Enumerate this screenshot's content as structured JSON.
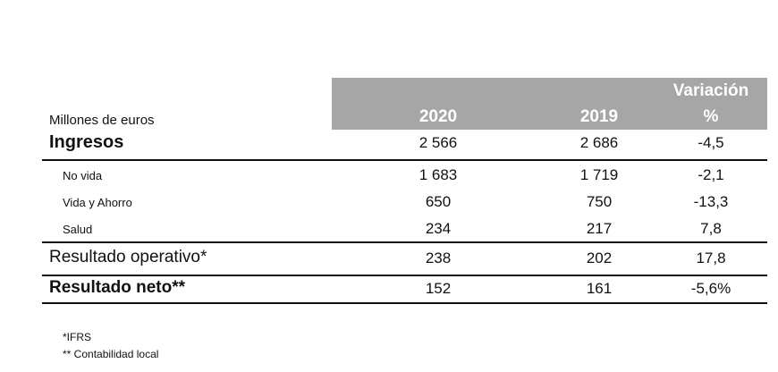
{
  "table": {
    "unit_label": "Millones de euros",
    "columns": [
      "2020",
      "2019"
    ],
    "variation_header": [
      "Variación",
      "%"
    ],
    "rows": [
      [
        "Ingresos",
        "2 566",
        "2 686",
        "-4,5"
      ],
      [
        "No vida",
        "1 683",
        "1 719",
        "-2,1"
      ],
      [
        "Vida y Ahorro",
        "650",
        "750",
        "-13,3"
      ],
      [
        "Salud",
        "234",
        "217",
        "7,8"
      ],
      [
        "Resultado operativo*",
        "238",
        "202",
        "17,8"
      ],
      [
        "Resultado neto**",
        "152",
        "161",
        "-5,6%"
      ]
    ]
  },
  "footnotes": [
    "*IFRS",
    "** Contabilidad local"
  ]
}
